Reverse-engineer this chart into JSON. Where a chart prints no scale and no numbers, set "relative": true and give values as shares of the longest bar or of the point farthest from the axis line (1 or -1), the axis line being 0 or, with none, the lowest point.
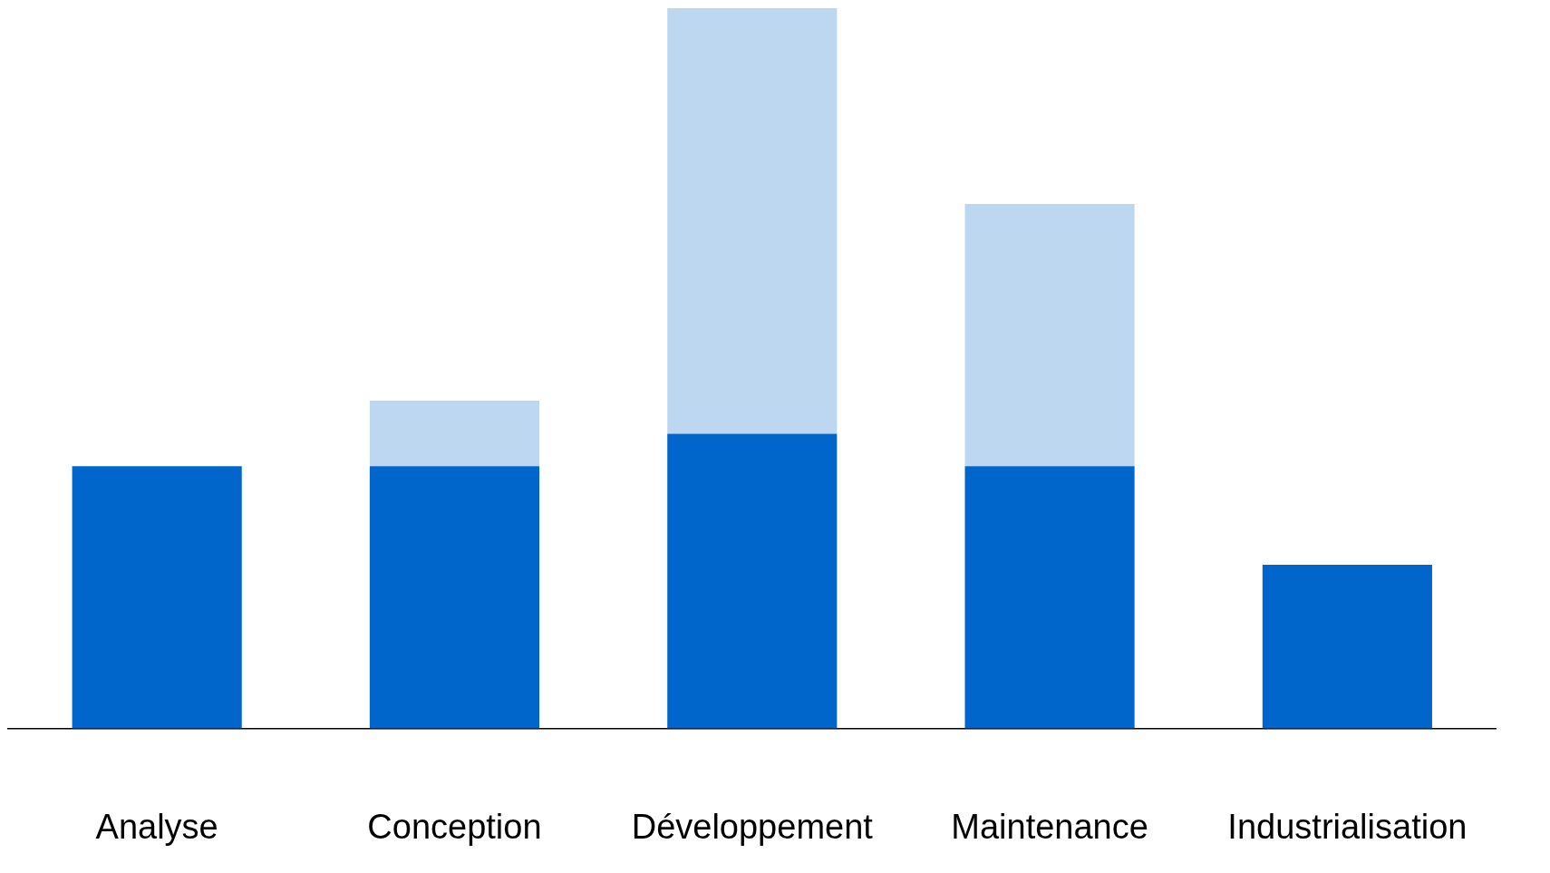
{
  "chart_data": {
    "type": "bar",
    "relative": true,
    "stacked": true,
    "categories": [
      "Analyse",
      "Conception",
      "Développement",
      "Maintenance",
      "Industrialisation"
    ],
    "legend": false,
    "series": [
      {
        "color": "#0066cc",
        "values": [
          0.364,
          0.364,
          0.409,
          0.364,
          0.227
        ]
      },
      {
        "color": "#bdd7f0",
        "values": [
          0,
          0.091,
          0.591,
          0.364,
          0
        ]
      }
    ]
  }
}
